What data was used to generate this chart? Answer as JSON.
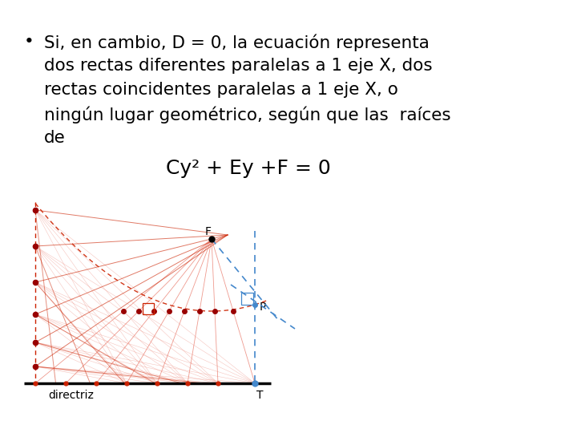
{
  "background_color": "#ffffff",
  "bullet_text_lines": [
    "Si, en cambio, D = 0, la ecuación representa",
    "dos rectas diferentes paralelas a 1 eje X, dos",
    "rectas coincidentes paralelas a 1 eje X, o",
    "ningún lugar geométrico, según que las  raíces",
    "de"
  ],
  "bullet_char": "•",
  "text_fontsize": 15.5,
  "equation_text": "Cy² + Ey +F = 0",
  "equation_fontsize": 18,
  "red_color": "#cc2200",
  "red_light": "#e87060",
  "blue_color": "#4488cc",
  "dark_red": "#990000",
  "black": "#000000"
}
